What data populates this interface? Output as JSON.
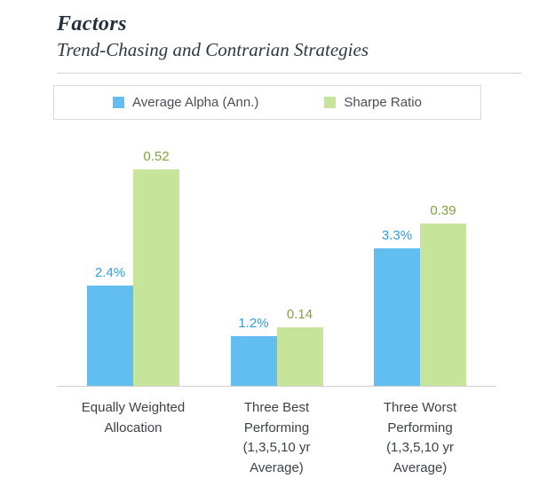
{
  "header": {
    "title": "Factors",
    "subtitle": "Trend-Chasing and Contrarian Strategies"
  },
  "legend": [
    {
      "label": "Average Alpha (Ann.)",
      "color": "#62bef0"
    },
    {
      "label": "Sharpe Ratio",
      "color": "#c7e49b"
    }
  ],
  "chart_data": {
    "type": "bar",
    "title": "Factors",
    "subtitle": "Trend-Chasing and Contrarian Strategies",
    "categories": [
      "Equally Weighted\nAllocation",
      "Three Best\nPerforming\n(1,3,5,10 yr\nAverage)",
      "Three Worst\nPerforming\n(1,3,5,10 yr\nAverage)"
    ],
    "series": [
      {
        "name": "Average Alpha (Ann.)",
        "values": [
          2.4,
          1.2,
          3.3
        ],
        "labels": [
          "2.4%",
          "1.2%",
          "3.3%"
        ],
        "ylim": [
          0,
          6
        ],
        "color": "#62bef0",
        "label_color": "#2f9fd6"
      },
      {
        "name": "Sharpe Ratio",
        "values": [
          0.52,
          0.14,
          0.39
        ],
        "labels": [
          "0.52",
          "0.14",
          "0.39"
        ],
        "ylim": [
          0,
          0.6
        ],
        "color": "#c7e49b",
        "label_color": "#81a33e"
      }
    ],
    "grid": false,
    "legend_position": "top",
    "xlabel": "",
    "ylabel": ""
  }
}
